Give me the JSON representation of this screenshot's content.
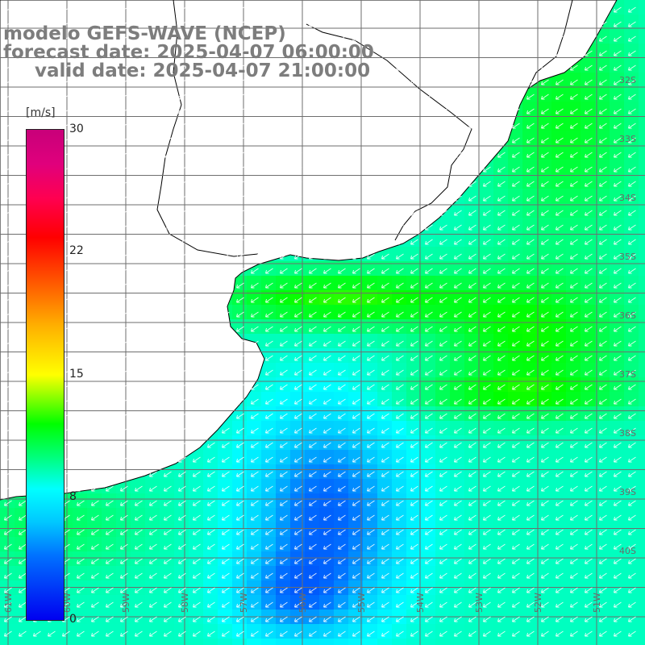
{
  "title": {
    "model": "modelo GEFS-WAVE (NCEP)",
    "forecast": "forecast date: 2025-04-07 06:00:00",
    "valid": "valid date: 2025-04-07 21:00:00"
  },
  "colorbar": {
    "unit": "[m/s]",
    "ticks": [
      "30",
      "22",
      "15",
      "8",
      "0"
    ],
    "range": [
      0,
      30
    ],
    "colors": [
      "#0000f0",
      "#00c8ff",
      "#00ffff",
      "#00ff00",
      "#ffff00",
      "#ff6000",
      "#ff0000",
      "#c8007a"
    ]
  },
  "lat_labels": [
    "32S",
    "33S",
    "34S",
    "35S",
    "36S",
    "37S",
    "38S",
    "39S",
    "40S"
  ],
  "lon_labels": [
    "61W",
    "60W",
    "59W",
    "58W",
    "57W",
    "56W",
    "55W",
    "54W",
    "53W",
    "52W",
    "51W"
  ],
  "colors": {
    "land": "#ffffff",
    "coast": "#000000",
    "grid": "#6e6e6e",
    "arrows": "#ffffff"
  }
}
